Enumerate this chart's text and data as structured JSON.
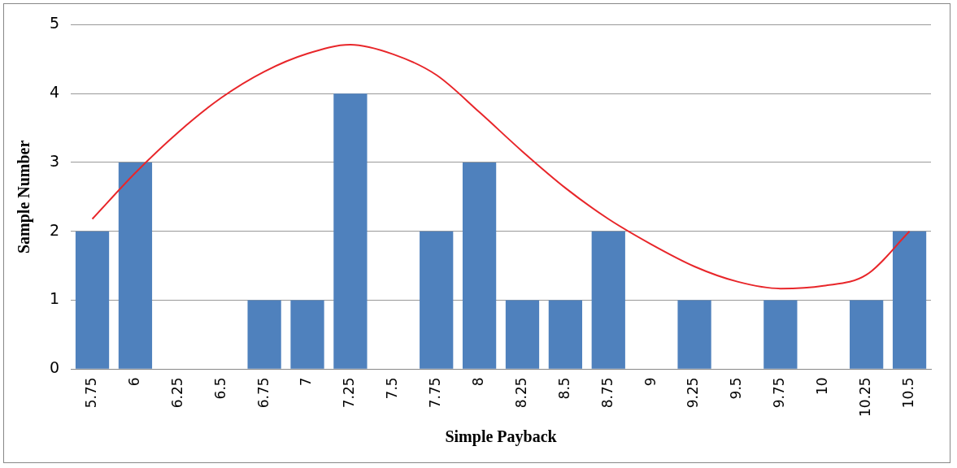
{
  "chart_data": {
    "type": "bar",
    "xlabel": "Simple Payback",
    "ylabel": "Sample Number",
    "categories": [
      "5.75",
      "6",
      "6.25",
      "6.5",
      "6.75",
      "7",
      "7.25",
      "7.5",
      "7.75",
      "8",
      "8.25",
      "8.5",
      "8.75",
      "9",
      "9.25",
      "9.5",
      "9.75",
      "10",
      "10.25",
      "10.5"
    ],
    "series": [
      {
        "color": "#4f81bd",
        "values": [
          2,
          3,
          0,
          0,
          1,
          1,
          4,
          0,
          2,
          3,
          1,
          1,
          2,
          0,
          1,
          0,
          1,
          0,
          1,
          2
        ]
      },
      {
        "type": "line",
        "color": "#e8262a",
        "values": [
          2.18,
          2.85,
          3.44,
          3.94,
          4.32,
          4.58,
          4.71,
          4.57,
          4.27,
          3.73,
          3.16,
          2.63,
          2.18,
          1.81,
          1.49,
          1.27,
          1.17,
          1.21,
          1.37,
          2.0
        ]
      }
    ],
    "ylim": [
      0,
      5
    ],
    "yticks": [
      0,
      1,
      2,
      3,
      4,
      5
    ],
    "grid": "y",
    "legend": false,
    "marker": "none"
  }
}
